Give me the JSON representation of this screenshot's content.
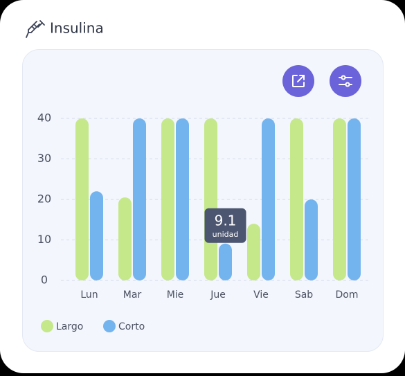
{
  "chart_data": {
    "type": "bar",
    "title": "Insulina",
    "categories": [
      "Lun",
      "Mar",
      "Mie",
      "Jue",
      "Vie",
      "Sab",
      "Dom"
    ],
    "series": [
      {
        "name": "Largo",
        "color": "#c5e88a",
        "values": [
          40,
          20.5,
          40,
          40,
          14,
          40,
          40
        ]
      },
      {
        "name": "Corto",
        "color": "#74b4ee",
        "values": [
          22,
          40,
          40,
          9.1,
          40,
          20,
          40
        ]
      }
    ],
    "unit": "unidad",
    "ylim": [
      0,
      40
    ],
    "yticks": [
      0,
      10,
      20,
      30,
      40
    ],
    "grid": true
  }
}
